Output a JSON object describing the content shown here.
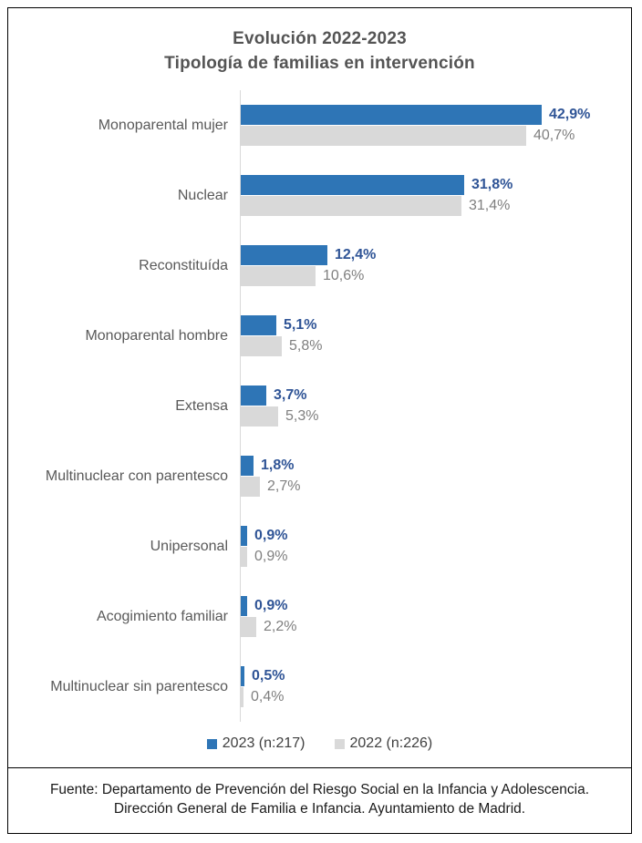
{
  "title": {
    "line1": "Evolución 2022-2023",
    "line2": "Tipología de familias en intervención"
  },
  "chart_data": {
    "type": "bar",
    "orientation": "horizontal",
    "title": "Evolución 2022-2023 — Tipología de familias en intervención",
    "categories": [
      "Monoparental mujer",
      "Nuclear",
      "Reconstituída",
      "Monoparental hombre",
      "Extensa",
      "Multinuclear con parentesco",
      "Unipersonal",
      "Acogimiento familiar",
      "Multinuclear sin parentesco"
    ],
    "series": [
      {
        "name": "2023 (n:217)",
        "color": "#2e75b6",
        "values": [
          42.9,
          31.8,
          12.4,
          5.1,
          3.7,
          1.8,
          0.9,
          0.9,
          0.5
        ],
        "display": [
          "42,9%",
          "31,8%",
          "12,4%",
          "5,1%",
          "3,7%",
          "1,8%",
          "0,9%",
          "0,9%",
          "0,5%"
        ]
      },
      {
        "name": "2022 (n:226)",
        "color": "#d9d9d9",
        "values": [
          40.7,
          31.4,
          10.6,
          5.8,
          5.3,
          2.7,
          0.9,
          2.2,
          0.4
        ],
        "display": [
          "40,7%",
          "31,4%",
          "10,6%",
          "5,8%",
          "5,3%",
          "2,7%",
          "0,9%",
          "2,2%",
          "0,4%"
        ]
      }
    ],
    "value_suffix": "%",
    "xlim": [
      0,
      50
    ],
    "gridlines": false,
    "legend_position": "bottom",
    "value_labels": "outside-end"
  },
  "legend": {
    "items": [
      {
        "label": "2023 (n:217)",
        "color": "#2e75b6"
      },
      {
        "label": "2022 (n:226)",
        "color": "#d9d9d9"
      }
    ]
  },
  "footer": {
    "text": "Fuente: Departamento de Prevención del Riesgo Social en la Infancia y Adolescencia. Dirección General de Familia e Infancia. Ayuntamiento de Madrid."
  },
  "colors": {
    "bar_2023": "#2e75b6",
    "bar_2022": "#d9d9d9",
    "value_label_2023": "#2f5496",
    "value_label_2022": "#7f7f7f",
    "category_label": "#595959",
    "title_text": "#545454",
    "axis_line": "#d9d9d9",
    "frame_border": "#000000"
  }
}
